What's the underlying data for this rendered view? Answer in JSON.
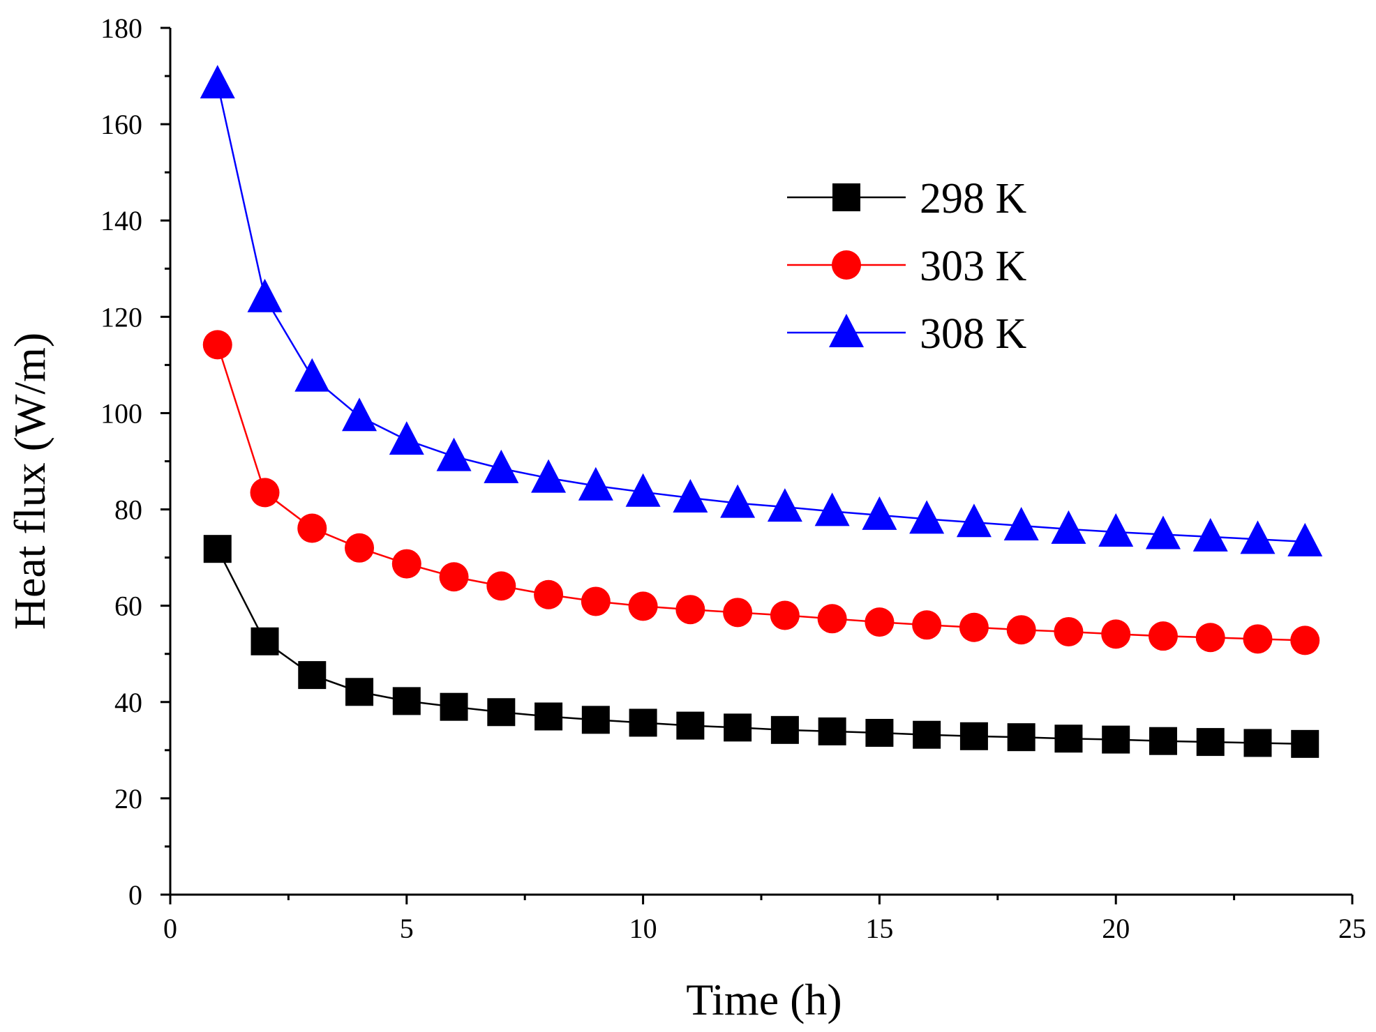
{
  "chart_data": {
    "type": "line",
    "title": "",
    "xlabel": "Time (h)",
    "ylabel": "Heat flux (W/m)",
    "xlim": [
      0,
      25
    ],
    "ylim": [
      0,
      180
    ],
    "xticks": [
      0,
      5,
      10,
      15,
      20,
      25
    ],
    "yticks": [
      0,
      20,
      40,
      60,
      80,
      100,
      120,
      140,
      160,
      180
    ],
    "x_minor_step": 2.5,
    "y_minor_step": 10,
    "grid": false,
    "legend_position": "top-right",
    "x": [
      1,
      2,
      3,
      4,
      5,
      6,
      7,
      8,
      9,
      10,
      11,
      12,
      13,
      14,
      15,
      16,
      17,
      18,
      19,
      20,
      21,
      22,
      23,
      24
    ],
    "series": [
      {
        "name": "298 K",
        "color": "#000000",
        "marker": "square",
        "values": [
          71.8,
          52.6,
          45.6,
          42.1,
          40.2,
          39.0,
          37.9,
          37.0,
          36.3,
          35.7,
          35.1,
          34.7,
          34.2,
          33.9,
          33.6,
          33.2,
          32.9,
          32.7,
          32.4,
          32.2,
          31.9,
          31.7,
          31.5,
          31.3
        ]
      },
      {
        "name": "303 K",
        "color": "#ff0000",
        "marker": "circle",
        "values": [
          114.2,
          83.5,
          76.1,
          72.0,
          68.7,
          66.0,
          64.1,
          62.3,
          60.9,
          59.9,
          59.2,
          58.6,
          58.0,
          57.3,
          56.6,
          56.0,
          55.5,
          55.0,
          54.6,
          54.1,
          53.7,
          53.4,
          53.1,
          52.8
        ]
      },
      {
        "name": "308 K",
        "color": "#0000ff",
        "marker": "triangle",
        "values": [
          168.4,
          124.0,
          107.5,
          99.3,
          94.4,
          91.0,
          88.5,
          86.5,
          84.9,
          83.6,
          82.4,
          81.3,
          80.5,
          79.6,
          78.8,
          78.0,
          77.3,
          76.6,
          75.9,
          75.3,
          74.8,
          74.3,
          73.8,
          73.3
        ]
      }
    ]
  }
}
